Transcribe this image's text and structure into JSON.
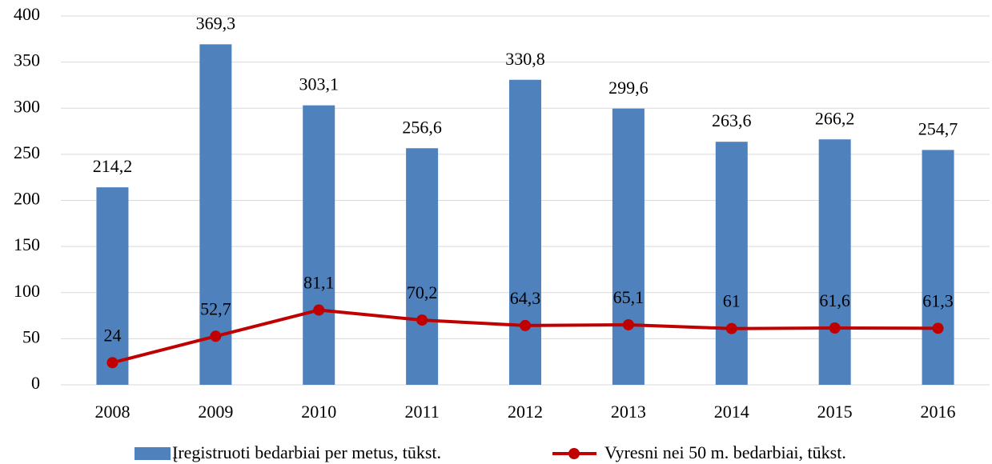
{
  "chart_data": {
    "type": "bar",
    "categories": [
      "2008",
      "2009",
      "2010",
      "2011",
      "2012",
      "2013",
      "2014",
      "2015",
      "2016"
    ],
    "series": [
      {
        "name": "Įregistruoti bedarbiai per metus, tūkst.",
        "type": "bar",
        "color": "#4f81bd",
        "values": [
          214.2,
          369.3,
          303.1,
          256.6,
          330.8,
          299.6,
          263.6,
          266.2,
          254.7
        ],
        "value_labels": [
          "214,2",
          "369,3",
          "303,1",
          "256,6",
          "330,8",
          "299,6",
          "263,6",
          "266,2",
          "254,7"
        ]
      },
      {
        "name": "Vyresni nei 50 m. bedarbiai, tūkst.",
        "type": "line",
        "color": "#c00000",
        "values": [
          24,
          52.7,
          81.1,
          70.2,
          64.3,
          65.1,
          61,
          61.6,
          61.3
        ],
        "value_labels": [
          "24",
          "52,7",
          "81,1",
          "70,2",
          "64,3",
          "65,1",
          "61",
          "61,6",
          "61,3"
        ]
      }
    ],
    "ylim": [
      0,
      400
    ],
    "yticks": [
      0,
      50,
      100,
      150,
      200,
      250,
      300,
      350,
      400
    ],
    "grid": true,
    "legend": "bottom"
  }
}
